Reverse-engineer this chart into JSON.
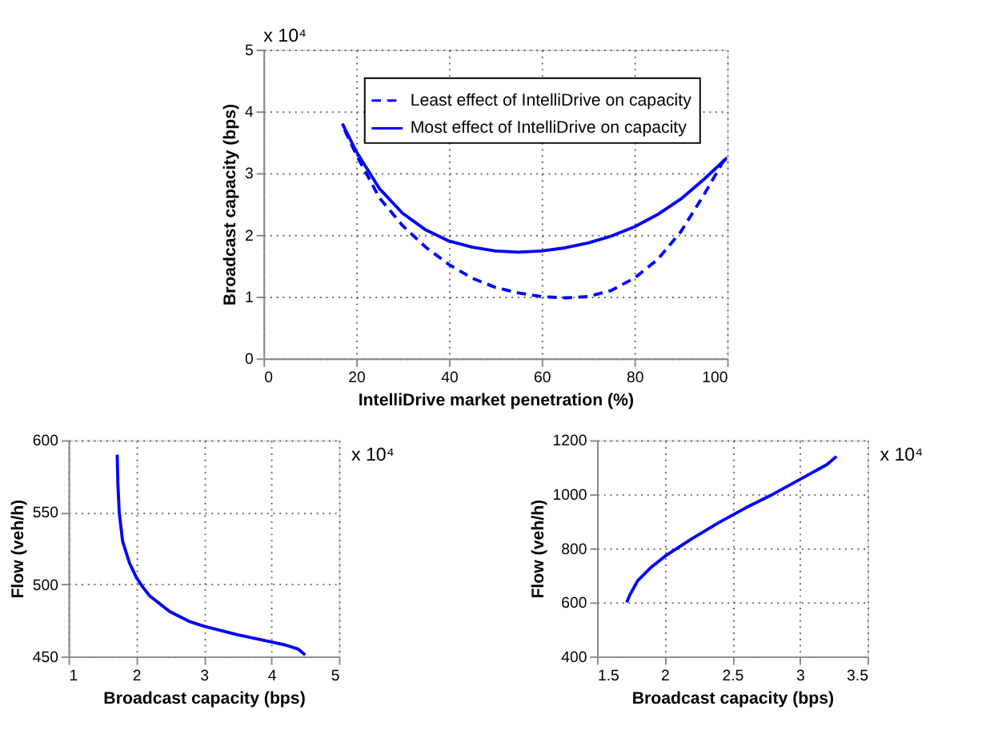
{
  "chart_data": [
    {
      "type": "line",
      "xlabel": "IntelliDrive market penetration (%)",
      "ylabel": "Broadcast capacity (bps)",
      "annotations": [
        "x 10⁴"
      ],
      "xlim": [
        0,
        100
      ],
      "xticks": [
        0,
        20,
        40,
        60,
        80,
        100
      ],
      "ylim": [
        0,
        5
      ],
      "yticks": [
        0,
        1,
        2,
        3,
        4,
        5
      ],
      "grid": true,
      "legend": "top right",
      "series": [
        {
          "name": "Least effect of IntelliDrive on capacity",
          "color": "#0000ff",
          "line_style": "dashed",
          "x": [
            17.5,
            20,
            25,
            30,
            35,
            40,
            45,
            50,
            55,
            60,
            65,
            70,
            75,
            80,
            85,
            90,
            95,
            100
          ],
          "values": [
            3.7,
            3.3,
            2.6,
            2.15,
            1.8,
            1.52,
            1.3,
            1.15,
            1.06,
            1.0,
            0.98,
            1.0,
            1.1,
            1.3,
            1.6,
            2.05,
            2.65,
            3.3
          ]
        },
        {
          "name": "Most effect of IntelliDrive on capacity",
          "color": "#0000ff",
          "line_style": "solid",
          "x": [
            17,
            20,
            25,
            30,
            35,
            40,
            45,
            50,
            55,
            60,
            65,
            70,
            75,
            80,
            85,
            90,
            95,
            100
          ],
          "values": [
            3.8,
            3.35,
            2.75,
            2.35,
            2.08,
            1.9,
            1.8,
            1.74,
            1.72,
            1.74,
            1.79,
            1.87,
            1.98,
            2.13,
            2.33,
            2.58,
            2.9,
            3.25
          ]
        }
      ]
    },
    {
      "type": "line",
      "xlabel": "Broadcast capacity (bps)",
      "ylabel": "Flow (veh/h)",
      "annotations": [
        "x 10⁴"
      ],
      "xlim": [
        1,
        5
      ],
      "xticks": [
        1,
        2,
        3,
        4,
        5
      ],
      "ylim": [
        450,
        600
      ],
      "yticks": [
        450,
        500,
        550,
        600
      ],
      "grid": true,
      "series": [
        {
          "color": "#0000ff",
          "x": [
            1.72,
            1.73,
            1.75,
            1.8,
            1.9,
            2.0,
            2.1,
            2.2,
            2.5,
            2.8,
            3.0,
            3.5,
            4.0,
            4.2,
            4.4,
            4.5
          ],
          "values": [
            590,
            570,
            550,
            530,
            515,
            505,
            498,
            492,
            481,
            474,
            471,
            465,
            460,
            458,
            455,
            451
          ]
        }
      ]
    },
    {
      "type": "line",
      "xlabel": "Broadcast capacity (bps)",
      "ylabel": "Flow (veh/h)",
      "annotations": [
        "x 10⁴"
      ],
      "xlim": [
        1.5,
        3.5
      ],
      "xticks": [
        1.5,
        2,
        2.5,
        3,
        3.5
      ],
      "ylim": [
        400,
        1200
      ],
      "yticks": [
        400,
        600,
        800,
        1000,
        1200
      ],
      "grid": true,
      "series": [
        {
          "color": "#0000ff",
          "x": [
            1.72,
            1.74,
            1.8,
            1.9,
            2.0,
            2.2,
            2.4,
            2.6,
            2.8,
            3.0,
            3.2,
            3.27
          ],
          "values": [
            600,
            625,
            680,
            730,
            770,
            835,
            895,
            950,
            1000,
            1055,
            1110,
            1140
          ]
        }
      ]
    }
  ]
}
